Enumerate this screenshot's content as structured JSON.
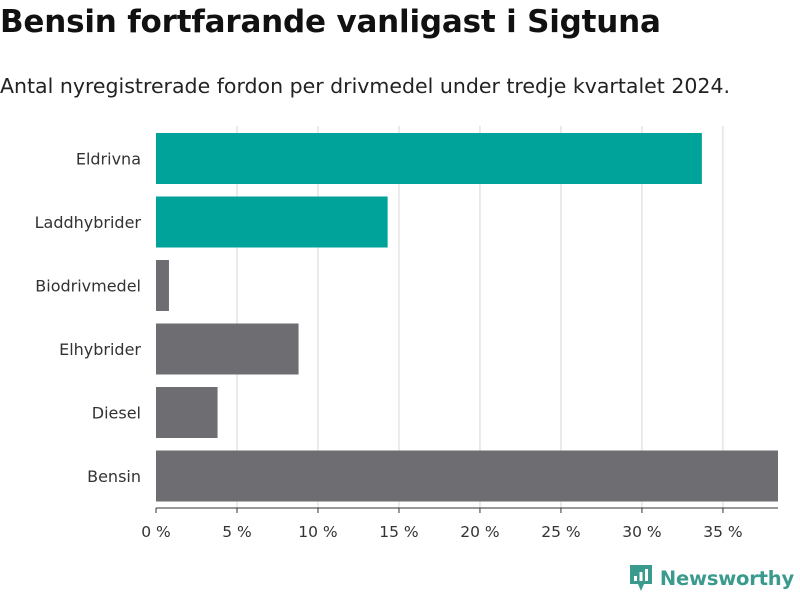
{
  "header": {
    "title": "Bensin fortfarande vanligast i Sigtuna",
    "subtitle": "Antal nyregistrerade fordon per drivmedel under tredje kvartalet 2024."
  },
  "brand": {
    "name": "Newsworthy",
    "icon": "newsworthy-logo-icon",
    "color": "#3a9a8d"
  },
  "colors": {
    "highlight": "#00a39a",
    "default": "#6e6d72",
    "grid": "#dddddd",
    "axis": "#333333"
  },
  "chart_data": {
    "type": "bar",
    "orientation": "horizontal",
    "title": "Bensin fortfarande vanligast i Sigtuna",
    "subtitle": "Antal nyregistrerade fordon per drivmedel under tredje kvartalet 2024.",
    "xlabel": "",
    "ylabel": "",
    "categories": [
      "Eldrivna",
      "Laddhybrider",
      "Biodrivmedel",
      "Elhybrider",
      "Diesel",
      "Bensin"
    ],
    "values": [
      33.7,
      14.3,
      0.8,
      8.8,
      3.8,
      38.4
    ],
    "highlighted": [
      true,
      true,
      false,
      false,
      false,
      false
    ],
    "unit": "%",
    "xlim": [
      0,
      38.4
    ],
    "xticks": [
      0,
      5,
      10,
      15,
      20,
      25,
      30,
      35
    ],
    "xtick_labels": [
      "0 %",
      "5 %",
      "10 %",
      "15 %",
      "20 %",
      "25 %",
      "30 %",
      "35 %"
    ],
    "grid": "vertical",
    "legend": "none"
  }
}
